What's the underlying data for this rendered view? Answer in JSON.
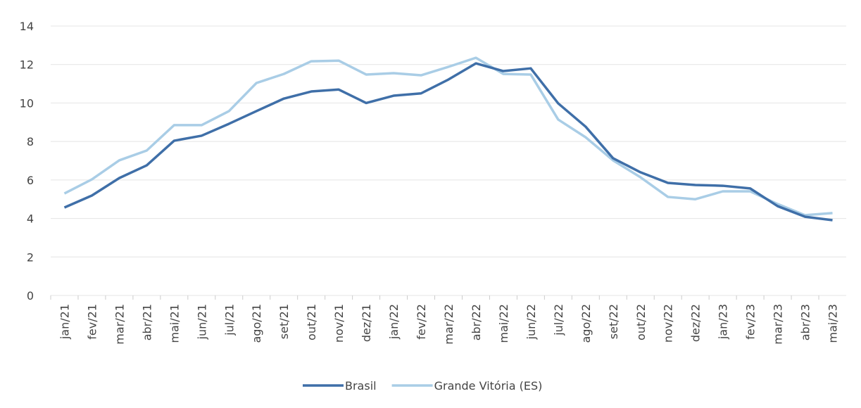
{
  "chart_data": {
    "type": "line",
    "categories": [
      "jan/21",
      "fev/21",
      "mar/21",
      "abr/21",
      "mai/21",
      "jun/21",
      "jul/21",
      "ago/21",
      "set/21",
      "out/21",
      "nov/21",
      "dez/21",
      "jan/22",
      "fev/22",
      "mar/22",
      "abr/22",
      "mai/22",
      "jun/22",
      "jul/22",
      "ago/22",
      "set/22",
      "out/22",
      "nov/22",
      "dez/22",
      "jan/23",
      "fev/23",
      "mar/23",
      "abr/23",
      "mai/23"
    ],
    "series": [
      {
        "name": "Brasil",
        "color": "#3f6fa8",
        "values": [
          4.57,
          5.19,
          6.1,
          6.76,
          8.04,
          8.3,
          8.92,
          9.58,
          10.23,
          10.6,
          10.7,
          10.0,
          10.38,
          10.5,
          11.22,
          12.06,
          11.66,
          11.8,
          9.98,
          8.77,
          7.13,
          6.4,
          5.85,
          5.74,
          5.7,
          5.56,
          4.64,
          4.09,
          3.91
        ]
      },
      {
        "name": "Grande Vitória (ES)",
        "color": "#a9cde6",
        "values": [
          5.3,
          6.03,
          7.02,
          7.53,
          8.85,
          8.85,
          9.58,
          11.04,
          11.51,
          12.17,
          12.2,
          11.48,
          11.55,
          11.44,
          11.88,
          12.35,
          11.51,
          11.48,
          9.14,
          8.22,
          7.02,
          6.14,
          5.12,
          5.0,
          5.41,
          5.41,
          4.75,
          4.17,
          4.28
        ]
      }
    ],
    "ylim": [
      0,
      14
    ],
    "yticks": [
      0,
      2,
      4,
      6,
      8,
      10,
      12,
      14
    ],
    "grid": true,
    "legend": "bottom"
  }
}
